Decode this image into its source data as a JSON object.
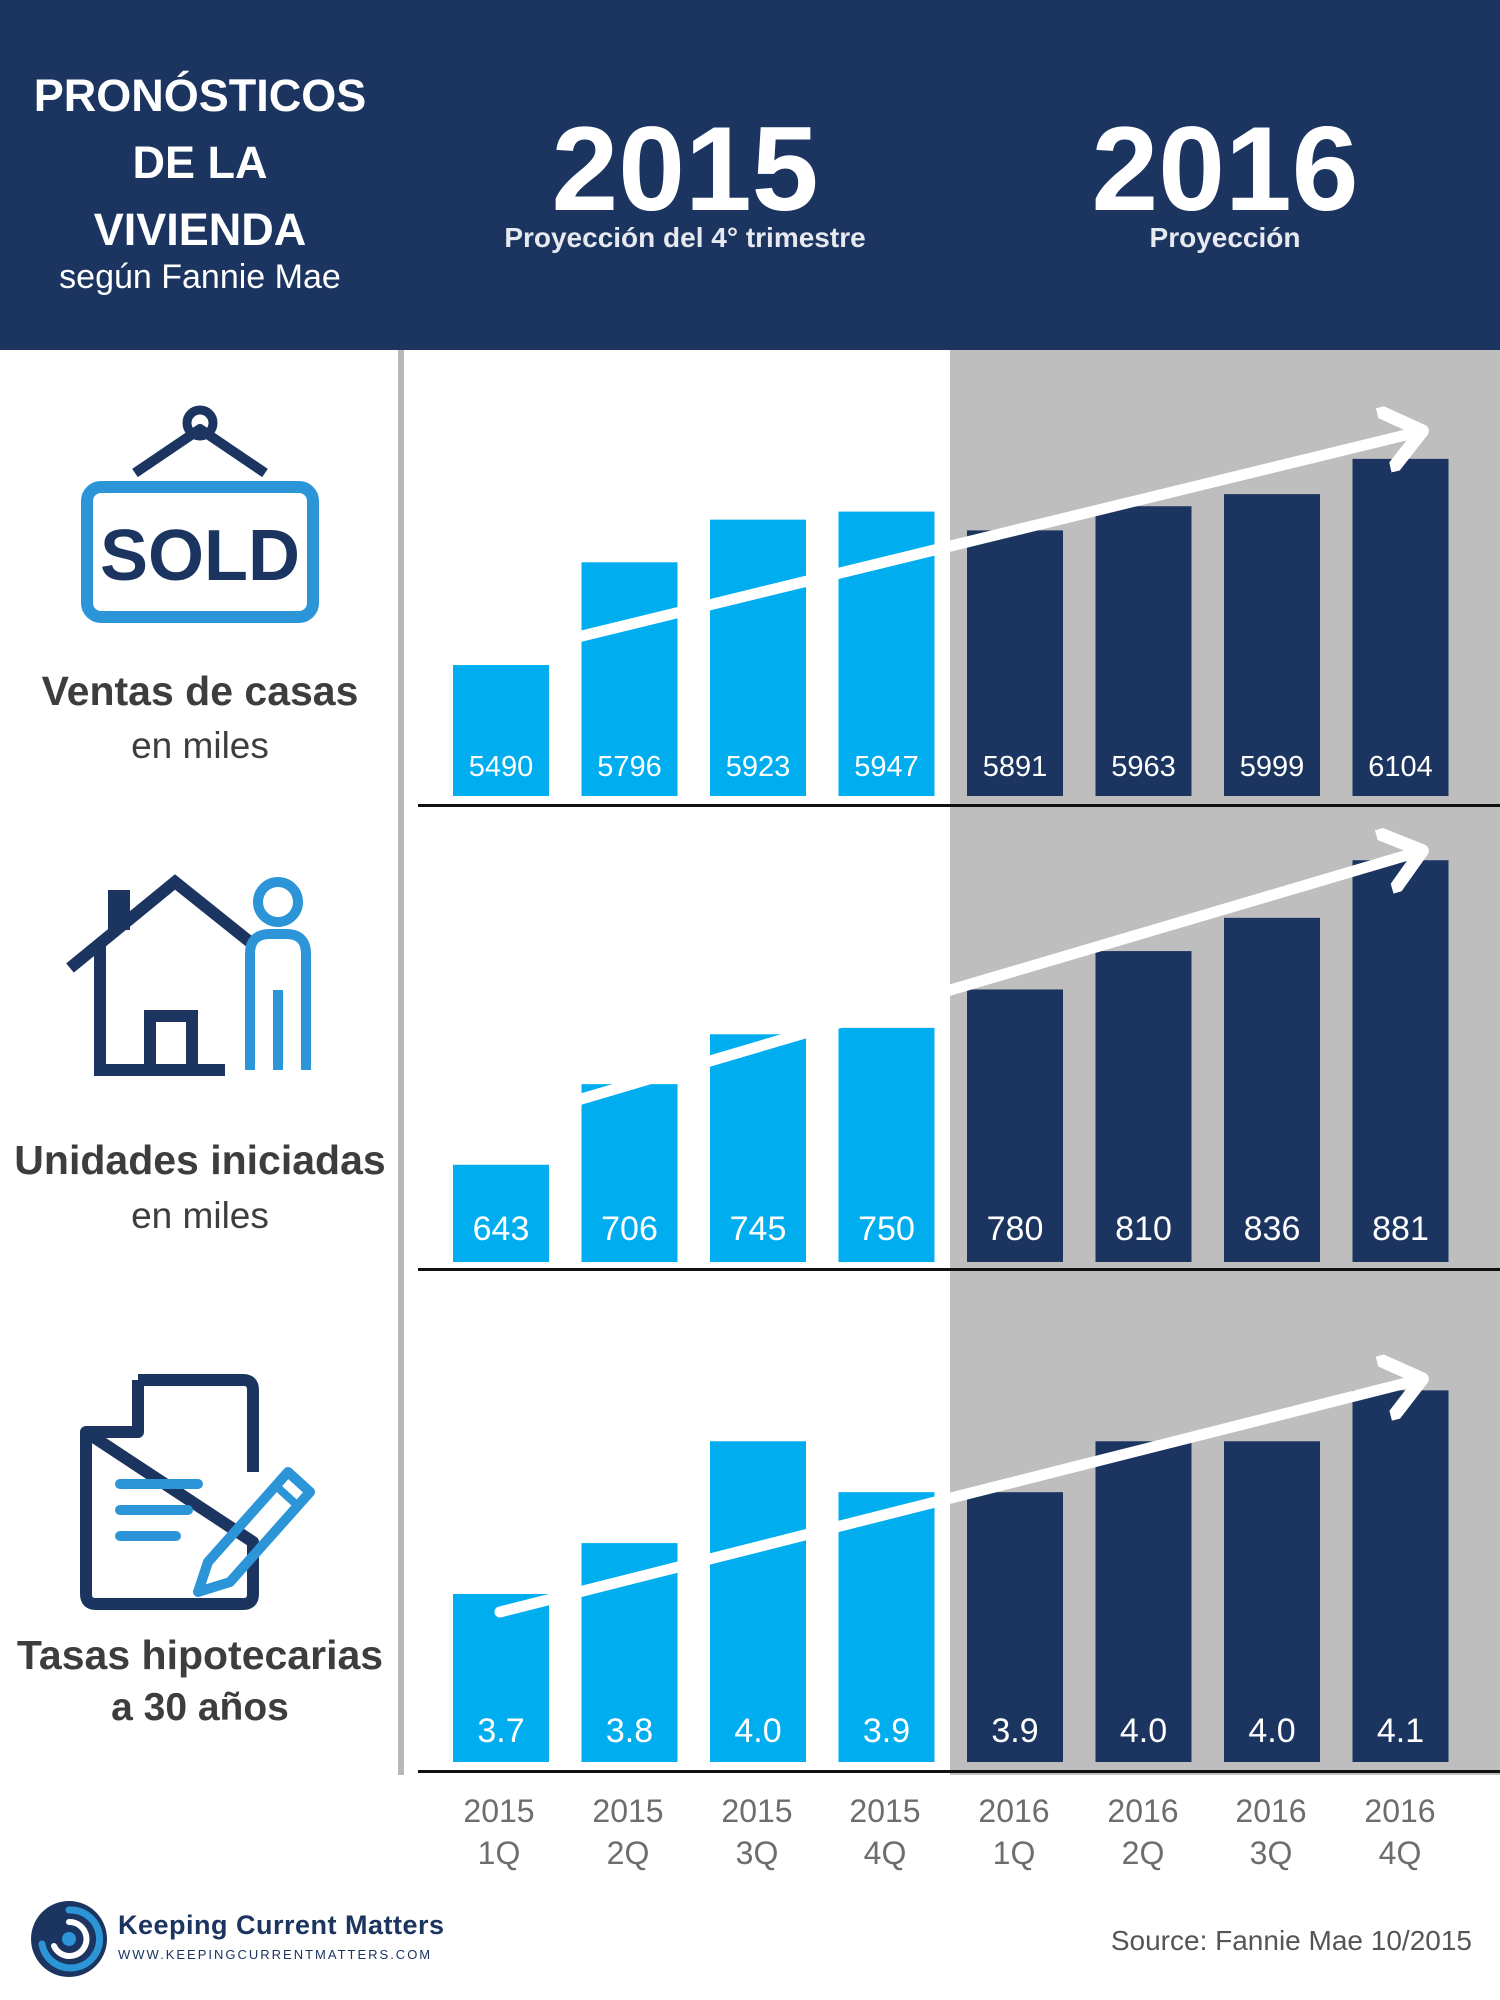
{
  "header": {
    "title_lines": [
      "PRONÓSTICOS",
      "DE LA",
      "VIVIENDA"
    ],
    "subtitle": "según Fannie Mae",
    "year1": "2015",
    "year1_sub": "Proyección del 4° trimestre",
    "year2": "2016",
    "year2_sub": "Proyección"
  },
  "panels": [
    {
      "title": "Ventas de casas",
      "sub": "en miles",
      "icon": "sold-sign-icon",
      "icon_text": "SOLD"
    },
    {
      "title": "Unidades iniciadas",
      "sub": "en miles",
      "icon": "house-person-icon"
    },
    {
      "title": "Tasas hipotecarias",
      "sub": "a 30 años",
      "icon": "document-pen-icon"
    }
  ],
  "colors": {
    "bar_2015": "#00aeef",
    "bar_2016": "#1b3560",
    "header_bg": "#1b3560",
    "projection_bg": "#bebebe"
  },
  "chart_data": [
    {
      "type": "bar",
      "categories": [
        "2015 1Q",
        "2015 2Q",
        "2015 3Q",
        "2015 4Q",
        "2016 1Q",
        "2016 2Q",
        "2016 3Q",
        "2016 4Q"
      ],
      "values": [
        5490,
        5796,
        5923,
        5947,
        5891,
        5963,
        5999,
        6104
      ],
      "labels": [
        "5490",
        "5796",
        "5923",
        "5947",
        "5891",
        "5963",
        "5999",
        "6104"
      ],
      "ylim": [
        5100,
        6190
      ],
      "grid": false,
      "trend_arrow": true
    },
    {
      "type": "bar",
      "categories": [
        "2015 1Q",
        "2015 2Q",
        "2015 3Q",
        "2015 4Q",
        "2016 1Q",
        "2016 2Q",
        "2016 3Q",
        "2016 4Q"
      ],
      "values": [
        643,
        706,
        745,
        750,
        780,
        810,
        836,
        881
      ],
      "labels": [
        "643",
        "706",
        "745",
        "750",
        "780",
        "810",
        "836",
        "881"
      ],
      "ylim": [
        567,
        889
      ],
      "grid": false,
      "trend_arrow": true
    },
    {
      "type": "bar",
      "categories": [
        "2015 1Q",
        "2015 2Q",
        "2015 3Q",
        "2015 4Q",
        "2016 1Q",
        "2016 2Q",
        "2016 3Q",
        "2016 4Q"
      ],
      "values": [
        3.7,
        3.8,
        4.0,
        3.9,
        3.9,
        4.0,
        4.0,
        4.1
      ],
      "labels": [
        "3.7",
        "3.8",
        "4.0",
        "3.9",
        "3.9",
        "4.0",
        "4.0",
        "4.1"
      ],
      "ylim": [
        3.37,
        4.14
      ],
      "grid": false,
      "trend_arrow": true
    }
  ],
  "x_labels": [
    [
      "2015",
      "1Q"
    ],
    [
      "2015",
      "2Q"
    ],
    [
      "2015",
      "3Q"
    ],
    [
      "2015",
      "4Q"
    ],
    [
      "2016",
      "1Q"
    ],
    [
      "2016",
      "2Q"
    ],
    [
      "2016",
      "3Q"
    ],
    [
      "2016",
      "4Q"
    ]
  ],
  "footer": {
    "logo_name": "Keeping Current Matters",
    "logo_url": "WWW.KEEPINGCURRENTMATTERS.COM",
    "source": "Source: Fannie Mae 10/2015"
  }
}
